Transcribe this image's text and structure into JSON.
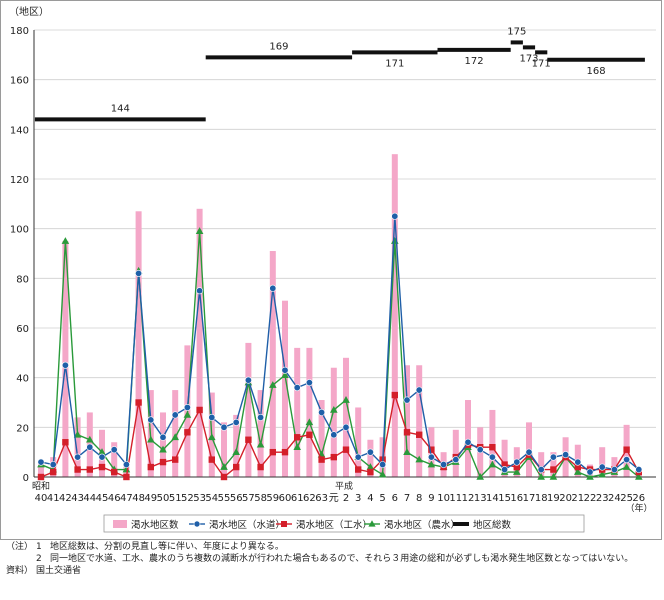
{
  "chart_data": {
    "type": "bar+line",
    "ylabel": "（地区）",
    "xunit": "（年）",
    "era_labels": [
      "昭和",
      "平成"
    ],
    "ylim": [
      0,
      180
    ],
    "yticks": [
      0,
      20,
      40,
      60,
      80,
      100,
      120,
      140,
      160,
      180
    ],
    "categories": [
      "40",
      "41",
      "42",
      "43",
      "44",
      "45",
      "46",
      "47",
      "48",
      "49",
      "50",
      "51",
      "52",
      "53",
      "54",
      "55",
      "56",
      "57",
      "58",
      "59",
      "60",
      "61",
      "62",
      "63",
      "元",
      "2",
      "3",
      "4",
      "5",
      "6",
      "7",
      "8",
      "9",
      "10",
      "11",
      "12",
      "13",
      "14",
      "15",
      "16",
      "17",
      "18",
      "19",
      "20",
      "21",
      "22",
      "23",
      "24",
      "25",
      "26"
    ],
    "legend": [
      "渇水地区数",
      "渇水地区（水道）",
      "渇水地区（工水）",
      "渇水地区（農水）",
      "地区総数"
    ],
    "colors": {
      "bars": "#f4a7c8",
      "water": "#1f5fa8",
      "industrial": "#d41f2a",
      "agri": "#2a9a3a",
      "total": "#111111"
    },
    "bars": [
      6,
      8,
      95,
      24,
      26,
      19,
      14,
      5,
      107,
      35,
      26,
      35,
      53,
      108,
      34,
      22,
      25,
      54,
      35,
      91,
      71,
      52,
      52,
      31,
      44,
      48,
      28,
      15,
      16,
      130,
      45,
      45,
      20,
      10,
      19,
      31,
      20,
      27,
      15,
      12,
      22,
      10,
      10,
      16,
      13,
      5,
      12,
      8,
      21,
      3
    ],
    "series": [
      {
        "name": "渇水地区（水道）",
        "values": [
          6,
          5,
          45,
          8,
          12,
          8,
          11,
          5,
          82,
          23,
          16,
          25,
          28,
          75,
          24,
          20,
          22,
          39,
          24,
          76,
          43,
          36,
          38,
          26,
          17,
          20,
          8,
          10,
          5,
          105,
          31,
          35,
          8,
          5,
          7,
          14,
          11,
          8,
          3,
          6,
          10,
          3,
          8,
          9,
          6,
          2,
          4,
          3,
          7,
          3
        ]
      },
      {
        "name": "渇水地区（工水）",
        "values": [
          0,
          2,
          14,
          3,
          3,
          4,
          2,
          0,
          30,
          4,
          6,
          7,
          18,
          27,
          7,
          0,
          4,
          15,
          4,
          10,
          10,
          16,
          17,
          7,
          8,
          11,
          3,
          2,
          7,
          33,
          18,
          17,
          11,
          4,
          8,
          13,
          12,
          12,
          5,
          4,
          9,
          3,
          3,
          8,
          4,
          3,
          3,
          3,
          11,
          2
        ]
      },
      {
        "name": "渇水地区（農水）",
        "values": [
          5,
          3,
          95,
          17,
          15,
          10,
          3,
          3,
          83,
          15,
          11,
          16,
          25,
          99,
          16,
          4,
          10,
          38,
          13,
          37,
          41,
          12,
          22,
          9,
          27,
          31,
          8,
          4,
          1,
          95,
          10,
          7,
          5,
          4,
          6,
          12,
          0,
          5,
          2,
          2,
          8,
          0,
          0,
          8,
          2,
          0,
          1,
          2,
          4,
          0
        ]
      }
    ],
    "total_segments": [
      {
        "from": "40",
        "to": "53",
        "value": 144
      },
      {
        "from": "54",
        "to": "2",
        "value": 169
      },
      {
        "from": "3",
        "to": "9",
        "value": 171
      },
      {
        "from": "10",
        "to": "15",
        "value": 172
      },
      {
        "from": "16",
        "to": "16",
        "value": 175
      },
      {
        "from": "17",
        "to": "17",
        "value": 173
      },
      {
        "from": "18",
        "to": "18",
        "value": 171
      },
      {
        "from": "19",
        "to": "26",
        "value": 168
      }
    ]
  },
  "notes": {
    "head": "（注）",
    "items": [
      {
        "num": "1",
        "text": "地区総数は、分割の見直し等に伴い、年度により異なる。"
      },
      {
        "num": "2",
        "text": "同一地区で水道、工水、農水のうち複数の減断水が行われた場合もあるので、それら３用途の総和が必ずしも渇水発生地区数となってはいない。"
      }
    ],
    "source_head": "資料）",
    "source_text": "国土交通省"
  }
}
